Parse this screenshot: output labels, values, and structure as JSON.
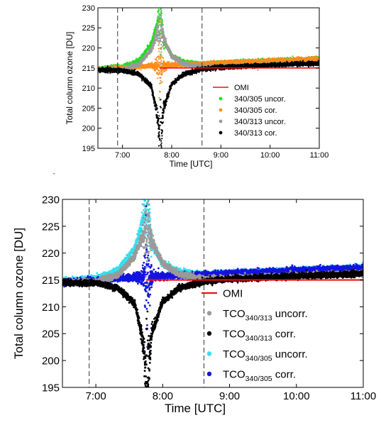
{
  "chart_data": [
    {
      "type": "scatter",
      "xlabel": "Time [UTC]",
      "ylabel": "Total column ozone [DU]",
      "xlim": [
        "6:30",
        "11:00"
      ],
      "ylim": [
        195,
        230
      ],
      "x_ticks": [
        {
          "value": "7:00",
          "label": "7:00"
        },
        {
          "value": "8:00",
          "label": "8:00"
        },
        {
          "value": "9:00",
          "label": "9:00"
        },
        {
          "value": "10:00",
          "label": "10:00"
        },
        {
          "value": "11:00",
          "label": "11:00"
        }
      ],
      "y_ticks": [
        195,
        200,
        205,
        210,
        215,
        220,
        225,
        230
      ],
      "vertical_dashed_lines": [
        "6:54",
        "8:37"
      ],
      "grid": false,
      "legend_position": "center-right",
      "legend": [
        {
          "label": "OMI",
          "marker": "line",
          "color": "#ee1111"
        },
        {
          "label": "340/305 uncor.",
          "marker": "dot",
          "color": "#22dd22"
        },
        {
          "label": "340/305 cor.",
          "marker": "dot",
          "color": "#ff8c1a"
        },
        {
          "label": "340/313 uncor.",
          "marker": "dot",
          "color": "#9a9a9a"
        },
        {
          "label": "340/313 cor.",
          "marker": "dot",
          "color": "#000000"
        }
      ],
      "series": [
        {
          "name": "OMI",
          "kind": "line",
          "color": "#ee1111",
          "x": [
            "7:45",
            "11:00"
          ],
          "y": [
            215.0,
            215.0
          ]
        },
        {
          "name": "340/305 uncor.",
          "kind": "scatter",
          "color": "#22dd22",
          "x": [
            "6:30",
            "7:00",
            "7:20",
            "7:35",
            "7:42",
            "7:46",
            "7:50",
            "8:00",
            "8:15",
            "8:37",
            "9:00",
            "10:00",
            "11:00"
          ],
          "y": [
            214.8,
            215.3,
            216.8,
            221.0,
            226.0,
            229.5,
            222.0,
            218.0,
            216.5,
            216.0,
            216.3,
            216.8,
            217.3
          ]
        },
        {
          "name": "340/305 cor.",
          "kind": "scatter",
          "color": "#ff8c1a",
          "x": [
            "6:30",
            "7:00",
            "7:20",
            "7:35",
            "7:42",
            "7:46",
            "7:50",
            "8:00",
            "8:15",
            "8:37",
            "9:00",
            "10:00",
            "11:00"
          ],
          "y": [
            214.6,
            215.0,
            215.3,
            215.5,
            215.5,
            215.0,
            215.5,
            215.7,
            215.9,
            216.0,
            216.3,
            216.8,
            217.3
          ]
        },
        {
          "name": "340/313 uncor.",
          "kind": "scatter",
          "color": "#9a9a9a",
          "x": [
            "6:30",
            "7:00",
            "7:20",
            "7:35",
            "7:42",
            "7:46",
            "7:50",
            "8:00",
            "8:15",
            "8:37",
            "9:00",
            "10:00",
            "11:00"
          ],
          "y": [
            214.5,
            214.6,
            216.0,
            219.5,
            223.5,
            225.0,
            222.5,
            218.0,
            216.0,
            215.2,
            215.3,
            215.8,
            216.2
          ]
        },
        {
          "name": "340/313 cor.",
          "kind": "scatter",
          "color": "#000000",
          "x": [
            "6:30",
            "7:00",
            "7:20",
            "7:35",
            "7:42",
            "7:46",
            "7:50",
            "8:00",
            "8:15",
            "8:37",
            "9:00",
            "10:00",
            "11:00"
          ],
          "y": [
            214.5,
            214.4,
            213.5,
            210.5,
            204.0,
            195.0,
            205.0,
            211.0,
            213.5,
            214.7,
            215.2,
            215.7,
            216.2
          ]
        }
      ]
    },
    {
      "type": "scatter",
      "xlabel": "Time [UTC]",
      "ylabel": "Total column ozone [DU]",
      "xlim": [
        "6:30",
        "11:00"
      ],
      "ylim": [
        195,
        230
      ],
      "x_ticks": [
        {
          "value": "7:00",
          "label": "7:00"
        },
        {
          "value": "8:00",
          "label": "8:00"
        },
        {
          "value": "9:00",
          "label": "9:00"
        },
        {
          "value": "10:00",
          "label": "10:00"
        },
        {
          "value": "11:00",
          "label": "11:00"
        }
      ],
      "y_ticks": [
        195,
        200,
        205,
        210,
        215,
        220,
        225,
        230
      ],
      "vertical_dashed_lines": [
        "6:54",
        "8:37"
      ],
      "grid": false,
      "legend_position": "lower-right",
      "legend": [
        {
          "label": "OMI",
          "sub": "",
          "suffix": "",
          "marker": "line",
          "color": "#ee1111"
        },
        {
          "label": "TCO",
          "sub": "340/313",
          "suffix": " uncorr.",
          "marker": "dot",
          "color": "#9a9a9a"
        },
        {
          "label": "TCO",
          "sub": "340/313",
          "suffix": " corr.",
          "marker": "dot",
          "color": "#000000"
        },
        {
          "label": "TCO",
          "sub": "340/305",
          "suffix": " uncorr.",
          "marker": "dot",
          "color": "#33e0ee"
        },
        {
          "label": "TCO",
          "sub": "340/305",
          "suffix": " corr.",
          "marker": "dot",
          "color": "#1414e0"
        }
      ],
      "series": [
        {
          "name": "OMI",
          "kind": "line",
          "color": "#ee1111",
          "x": [
            "7:45",
            "11:00"
          ],
          "y": [
            215.0,
            215.0
          ]
        },
        {
          "name": "TCO340/305 uncorr.",
          "kind": "scatter",
          "color": "#33e0ee",
          "x": [
            "6:30",
            "7:00",
            "7:20",
            "7:35",
            "7:42",
            "7:46",
            "7:50",
            "8:00",
            "8:15",
            "8:37",
            "9:00",
            "10:00",
            "11:00"
          ],
          "y": [
            214.8,
            215.3,
            216.8,
            221.0,
            226.0,
            229.5,
            222.0,
            218.0,
            216.5,
            216.0,
            216.3,
            216.8,
            217.3
          ]
        },
        {
          "name": "TCO340/305 corr.",
          "kind": "scatter",
          "color": "#1414e0",
          "x": [
            "6:30",
            "7:00",
            "7:20",
            "7:35",
            "7:42",
            "7:46",
            "7:50",
            "8:00",
            "8:15",
            "8:37",
            "9:00",
            "10:00",
            "11:00"
          ],
          "y": [
            214.6,
            215.0,
            215.3,
            215.5,
            215.5,
            215.0,
            215.5,
            215.7,
            215.9,
            216.0,
            216.3,
            216.8,
            217.3
          ]
        },
        {
          "name": "TCO340/313 uncorr.",
          "kind": "scatter",
          "color": "#9a9a9a",
          "x": [
            "6:30",
            "7:00",
            "7:20",
            "7:35",
            "7:42",
            "7:46",
            "7:50",
            "8:00",
            "8:15",
            "8:37",
            "9:00",
            "10:00",
            "11:00"
          ],
          "y": [
            214.5,
            214.6,
            216.0,
            219.5,
            223.5,
            225.0,
            222.5,
            218.0,
            216.0,
            215.2,
            215.3,
            215.8,
            216.2
          ]
        },
        {
          "name": "TCO340/313 corr.",
          "kind": "scatter",
          "color": "#000000",
          "x": [
            "6:30",
            "7:00",
            "7:20",
            "7:35",
            "7:42",
            "7:46",
            "7:50",
            "8:00",
            "8:15",
            "8:37",
            "9:00",
            "10:00",
            "11:00"
          ],
          "y": [
            214.5,
            214.4,
            213.5,
            210.5,
            204.0,
            195.0,
            205.0,
            211.0,
            213.5,
            214.7,
            215.2,
            215.7,
            216.2
          ]
        }
      ]
    }
  ]
}
